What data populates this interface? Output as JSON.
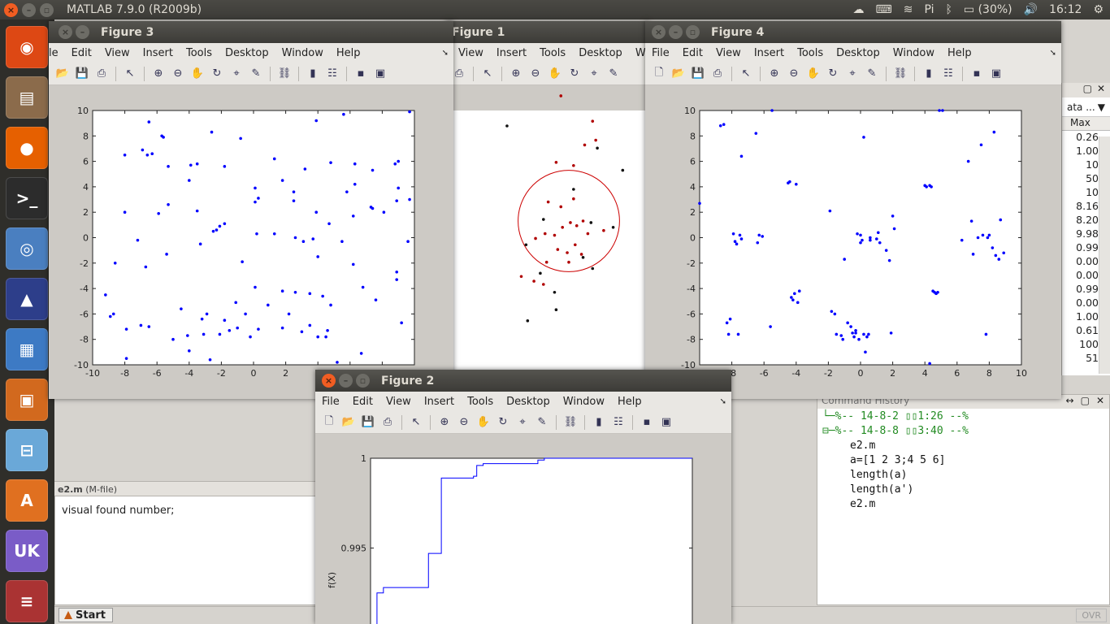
{
  "topbar": {
    "title": "MATLAB  7.9.0 (R2009b)",
    "battery": "(30%)",
    "time": "16:12"
  },
  "editor": {
    "file_label": "e2.m",
    "file_type": "(M-file)",
    "text": "visual found number;"
  },
  "statusbar": {
    "start_label": "Start",
    "ovr": "OVR"
  },
  "variable_panel": {
    "combo": "ata ...",
    "column": "Max",
    "values": [
      "0.26",
      "1.00",
      "10",
      "50",
      "10",
      "8.16",
      "8.20",
      "9.98",
      "0.99",
      "0.00",
      "0.00",
      "0.99",
      "0.00",
      "1.00",
      "0.61",
      "100",
      "51"
    ]
  },
  "command_history": {
    "title": "Command History",
    "sessions": [
      {
        "label": "%-- 14-8-2 ▯▯1:26 --%",
        "commands": []
      },
      {
        "label": "%-- 14-8-8 ▯▯3:40 --%",
        "commands": [
          "e2.m",
          "a=[1 2 3;4 5 6]",
          "length(a)",
          "length(a')",
          "e2.m"
        ]
      }
    ]
  },
  "menus": [
    "File",
    "Edit",
    "View",
    "Insert",
    "Tools",
    "Desktop",
    "Window",
    "Help"
  ],
  "figures": {
    "fig3": {
      "title": "Figure 3",
      "menu_first": "le"
    },
    "fig1": {
      "title": "Figure 1",
      "menu_last": "Winc"
    },
    "fig4": {
      "title": "Figure 4"
    },
    "fig2": {
      "title": "Figure 2",
      "ylabel": "f(X)"
    }
  },
  "chart_data": [
    {
      "id": "figure3",
      "type": "scatter",
      "xlim": [
        -10,
        10
      ],
      "ylim": [
        -10,
        10
      ],
      "xticks": [
        -10,
        -8,
        -6,
        -4,
        -2,
        0,
        2,
        4,
        6,
        8,
        10
      ],
      "yticks": [
        -10,
        -8,
        -6,
        -4,
        -2,
        0,
        2,
        4,
        6,
        8,
        10
      ],
      "color": "#0000ff",
      "points": [
        [
          -9.2,
          -4.5
        ],
        [
          -8.7,
          -6.0
        ],
        [
          -8.9,
          -6.2
        ],
        [
          -8.6,
          -2.0
        ],
        [
          -8.0,
          6.5
        ],
        [
          -8.0,
          2.0
        ],
        [
          -7.9,
          -7.2
        ],
        [
          -7.9,
          -9.5
        ],
        [
          -7.2,
          -0.2
        ],
        [
          -7.0,
          -6.9
        ],
        [
          -6.9,
          6.9
        ],
        [
          -6.7,
          -2.3
        ],
        [
          -6.6,
          6.5
        ],
        [
          -6.5,
          9.1
        ],
        [
          -6.5,
          -7.0
        ],
        [
          -6.3,
          6.6
        ],
        [
          -5.9,
          1.9
        ],
        [
          -5.7,
          8.0
        ],
        [
          -5.6,
          7.9
        ],
        [
          -5.4,
          -1.3
        ],
        [
          -5.3,
          2.6
        ],
        [
          -5.3,
          5.6
        ],
        [
          -5.0,
          -8.0
        ],
        [
          -4.5,
          -5.6
        ],
        [
          -4.1,
          -7.7
        ],
        [
          -4.0,
          -8.9
        ],
        [
          -4.0,
          4.5
        ],
        [
          -3.9,
          5.7
        ],
        [
          -3.5,
          5.8
        ],
        [
          -3.5,
          2.1
        ],
        [
          -3.3,
          -0.5
        ],
        [
          -3.2,
          -6.4
        ],
        [
          -3.1,
          -7.6
        ],
        [
          -2.9,
          -6.0
        ],
        [
          -2.7,
          -9.6
        ],
        [
          -2.6,
          8.3
        ],
        [
          -2.5,
          0.5
        ],
        [
          -2.3,
          0.6
        ],
        [
          -2.1,
          -7.6
        ],
        [
          -2.1,
          0.9
        ],
        [
          -1.8,
          -6.5
        ],
        [
          -1.8,
          1.1
        ],
        [
          -1.8,
          5.6
        ],
        [
          -1.5,
          -7.3
        ],
        [
          -1.1,
          -5.1
        ],
        [
          -1.0,
          -7.1
        ],
        [
          -0.8,
          7.8
        ],
        [
          -0.7,
          -1.9
        ],
        [
          -0.5,
          -6.0
        ],
        [
          -0.2,
          -7.8
        ],
        [
          0.1,
          3.9
        ],
        [
          0.1,
          2.8
        ],
        [
          0.1,
          -3.9
        ],
        [
          0.2,
          0.3
        ],
        [
          0.3,
          3.1
        ],
        [
          0.3,
          -7.2
        ],
        [
          0.9,
          -5.3
        ],
        [
          1.3,
          0.3
        ],
        [
          1.3,
          6.2
        ],
        [
          1.8,
          -4.2
        ],
        [
          1.8,
          4.5
        ],
        [
          1.8,
          -7.1
        ],
        [
          2.2,
          -6.0
        ],
        [
          2.5,
          3.6
        ],
        [
          2.5,
          2.9
        ],
        [
          2.6,
          0.0
        ],
        [
          2.6,
          -4.3
        ],
        [
          3.0,
          -7.4
        ],
        [
          3.1,
          -0.3
        ],
        [
          3.2,
          5.4
        ],
        [
          3.5,
          -6.9
        ],
        [
          3.5,
          -4.4
        ],
        [
          3.7,
          -0.1
        ],
        [
          3.9,
          2.0
        ],
        [
          3.9,
          9.2
        ],
        [
          4.0,
          -7.8
        ],
        [
          4.0,
          -1.5
        ],
        [
          4.3,
          -4.6
        ],
        [
          4.5,
          -7.8
        ],
        [
          4.6,
          -7.3
        ],
        [
          4.7,
          1.1
        ],
        [
          4.8,
          -5.3
        ],
        [
          4.8,
          5.9
        ],
        [
          5.2,
          -9.8
        ],
        [
          5.5,
          -0.3
        ],
        [
          5.6,
          9.7
        ],
        [
          5.8,
          3.6
        ],
        [
          6.2,
          -2.1
        ],
        [
          6.2,
          1.7
        ],
        [
          6.3,
          4.2
        ],
        [
          6.3,
          5.8
        ],
        [
          6.7,
          -9.1
        ],
        [
          6.8,
          -3.9
        ],
        [
          7.3,
          2.4
        ],
        [
          7.4,
          2.3
        ],
        [
          7.4,
          5.3
        ],
        [
          7.6,
          -4.9
        ],
        [
          8.1,
          2.0
        ],
        [
          8.8,
          5.8
        ],
        [
          8.9,
          -3.3
        ],
        [
          8.9,
          2.9
        ],
        [
          8.9,
          -2.7
        ],
        [
          9.0,
          6.0
        ],
        [
          9.0,
          3.9
        ],
        [
          9.2,
          -6.7
        ],
        [
          9.6,
          -0.3
        ],
        [
          9.7,
          9.9
        ],
        [
          9.7,
          3.0
        ]
      ]
    },
    {
      "id": "figure1",
      "type": "scatter",
      "circle_center": [
        0,
        0
      ],
      "circle_radius": 3.2,
      "circle_color": "#cc0000",
      "points_red": [
        [
          0.4,
          9.2
        ],
        [
          -0.5,
          7.9
        ],
        [
          1.5,
          6.3
        ],
        [
          1.0,
          4.8
        ],
        [
          -0.8,
          3.7
        ],
        [
          0.3,
          3.5
        ],
        [
          1.7,
          5.1
        ],
        [
          -1.3,
          1.2
        ],
        [
          -0.5,
          0.9
        ],
        [
          0.3,
          1.4
        ],
        [
          0.9,
          0.0
        ],
        [
          -1.5,
          -0.8
        ],
        [
          -2.1,
          -1.1
        ],
        [
          -0.4,
          -0.4
        ],
        [
          0.1,
          -0.1
        ],
        [
          0.5,
          -0.3
        ],
        [
          -0.9,
          -0.9
        ],
        [
          1.2,
          -0.8
        ],
        [
          2.2,
          -0.6
        ],
        [
          -0.7,
          -1.8
        ],
        [
          -0.1,
          -2.0
        ],
        [
          0.4,
          -1.5
        ],
        [
          0.0,
          -2.6
        ],
        [
          0.8,
          -2.1
        ],
        [
          -1.4,
          -2.6
        ],
        [
          -2.2,
          -3.8
        ],
        [
          -3.0,
          -3.5
        ],
        [
          -1.6,
          -4.0
        ]
      ],
      "points_black": [
        [
          -3.9,
          6.0
        ],
        [
          -2.7,
          -1.5
        ],
        [
          -1.8,
          -3.3
        ],
        [
          -0.9,
          -4.5
        ],
        [
          -2.6,
          -6.3
        ],
        [
          0.3,
          2.0
        ],
        [
          1.8,
          4.6
        ],
        [
          3.4,
          3.2
        ],
        [
          1.4,
          -0.1
        ],
        [
          2.8,
          -0.4
        ],
        [
          0.9,
          -2.3
        ],
        [
          1.5,
          -3.0
        ],
        [
          -1.6,
          0.1
        ],
        [
          -0.8,
          -5.6
        ]
      ]
    },
    {
      "id": "figure4",
      "type": "scatter",
      "xlim": [
        -10,
        10
      ],
      "ylim": [
        -10,
        10
      ],
      "xticks": [
        -8,
        -6,
        -4,
        -2,
        0,
        2,
        4,
        6,
        8,
        10
      ],
      "yticks": [
        -10,
        -8,
        -6,
        -4,
        -2,
        0,
        2,
        4,
        6,
        8,
        10
      ],
      "color": "#0000ff",
      "points": [
        [
          -10.0,
          2.7
        ],
        [
          -8.7,
          8.8
        ],
        [
          -8.5,
          8.9
        ],
        [
          -8.3,
          -6.7
        ],
        [
          -8.2,
          -7.6
        ],
        [
          -8.1,
          -6.4
        ],
        [
          -7.9,
          0.3
        ],
        [
          -7.8,
          -0.3
        ],
        [
          -7.7,
          -0.5
        ],
        [
          -7.6,
          -7.6
        ],
        [
          -7.5,
          0.2
        ],
        [
          -7.4,
          6.4
        ],
        [
          -7.4,
          -0.1
        ],
        [
          -6.5,
          8.2
        ],
        [
          -6.4,
          -0.4
        ],
        [
          -6.3,
          0.2
        ],
        [
          -6.1,
          0.1
        ],
        [
          -5.6,
          -7.0
        ],
        [
          -5.5,
          10.0
        ],
        [
          -4.5,
          4.3
        ],
        [
          -4.4,
          4.4
        ],
        [
          -4.3,
          -4.7
        ],
        [
          -4.2,
          -4.9
        ],
        [
          -4.1,
          -4.4
        ],
        [
          -4.0,
          4.2
        ],
        [
          -3.9,
          -5.1
        ],
        [
          -3.8,
          -4.2
        ],
        [
          -1.9,
          2.1
        ],
        [
          -1.8,
          -5.8
        ],
        [
          -1.6,
          -6.0
        ],
        [
          -1.5,
          -7.6
        ],
        [
          -1.2,
          -7.7
        ],
        [
          -1.1,
          -8.0
        ],
        [
          -1.0,
          -1.7
        ],
        [
          -0.8,
          -6.7
        ],
        [
          -0.6,
          -7.0
        ],
        [
          -0.5,
          -7.5
        ],
        [
          -0.4,
          -7.8
        ],
        [
          -0.3,
          -7.3
        ],
        [
          -0.3,
          -7.5
        ],
        [
          -0.2,
          0.3
        ],
        [
          -0.1,
          -8.0
        ],
        [
          0.0,
          -0.4
        ],
        [
          0.0,
          0.2
        ],
        [
          0.1,
          -0.2
        ],
        [
          0.2,
          -7.6
        ],
        [
          0.2,
          7.9
        ],
        [
          0.3,
          -9.0
        ],
        [
          0.4,
          -7.8
        ],
        [
          0.5,
          -7.6
        ],
        [
          0.6,
          -0.2
        ],
        [
          0.6,
          0.0
        ],
        [
          1.0,
          -0.1
        ],
        [
          1.1,
          0.4
        ],
        [
          1.2,
          -0.4
        ],
        [
          1.6,
          -1.0
        ],
        [
          1.8,
          -1.8
        ],
        [
          1.9,
          -7.5
        ],
        [
          2.0,
          1.7
        ],
        [
          2.1,
          0.7
        ],
        [
          4.0,
          4.1
        ],
        [
          4.1,
          4.0
        ],
        [
          4.3,
          4.1
        ],
        [
          4.4,
          4.0
        ],
        [
          4.5,
          -4.2
        ],
        [
          4.6,
          -4.3
        ],
        [
          4.7,
          -4.4
        ],
        [
          4.8,
          -4.3
        ],
        [
          4.9,
          10.0
        ],
        [
          5.1,
          10.0
        ],
        [
          6.3,
          -0.2
        ],
        [
          6.7,
          6.0
        ],
        [
          6.9,
          1.3
        ],
        [
          7.0,
          -1.3
        ],
        [
          7.3,
          0.0
        ],
        [
          7.5,
          7.3
        ],
        [
          7.6,
          0.2
        ],
        [
          7.8,
          -7.6
        ],
        [
          7.9,
          0.0
        ],
        [
          8.0,
          0.2
        ],
        [
          8.2,
          -0.8
        ],
        [
          8.3,
          8.3
        ],
        [
          8.4,
          -1.4
        ],
        [
          8.6,
          -1.7
        ],
        [
          8.7,
          1.4
        ],
        [
          8.9,
          -1.2
        ],
        [
          4.3,
          -9.9
        ]
      ]
    },
    {
      "id": "figure2",
      "type": "line",
      "ylabel": "f(X)",
      "yticks": [
        0.995,
        1
      ],
      "ylim": [
        0.9905,
        1.0
      ],
      "x": [
        0.0,
        0.02,
        0.04,
        0.16,
        0.18,
        0.2,
        0.22,
        0.24,
        0.3,
        0.32,
        0.33,
        0.35,
        0.5,
        0.52,
        0.54,
        0.55,
        0.92,
        0.94,
        1.0
      ],
      "y": [
        0.9903,
        0.9925,
        0.9928,
        0.9928,
        0.9947,
        0.9947,
        0.9989,
        0.9989,
        0.9989,
        0.999,
        0.9996,
        0.9997,
        0.9997,
        0.9999,
        1.0,
        1.0,
        1.0,
        1.0,
        1.0
      ]
    }
  ]
}
